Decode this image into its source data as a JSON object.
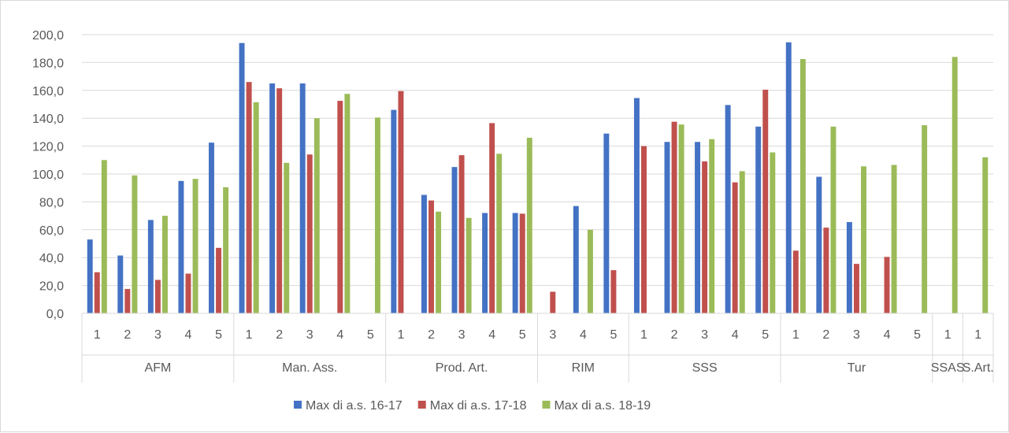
{
  "chart_data": {
    "type": "bar",
    "title": "",
    "xlabel": "",
    "ylabel": "",
    "ylim": [
      0,
      200
    ],
    "yticks": [
      "0,0",
      "20,0",
      "40,0",
      "60,0",
      "80,0",
      "100,0",
      "120,0",
      "140,0",
      "160,0",
      "180,0",
      "200,0"
    ],
    "grid": true,
    "legend_position": "bottom",
    "groups": [
      {
        "name": "AFM",
        "categories": [
          "1",
          "2",
          "3",
          "4",
          "5"
        ]
      },
      {
        "name": "Man. Ass.",
        "categories": [
          "1",
          "2",
          "3",
          "4",
          "5"
        ]
      },
      {
        "name": "Prod. Art.",
        "categories": [
          "1",
          "2",
          "3",
          "4",
          "5"
        ]
      },
      {
        "name": "RIM",
        "categories": [
          "3",
          "4",
          "5"
        ]
      },
      {
        "name": "SSS",
        "categories": [
          "1",
          "2",
          "3",
          "4",
          "5"
        ]
      },
      {
        "name": "Tur",
        "categories": [
          "1",
          "2",
          "3",
          "4",
          "5"
        ]
      },
      {
        "name": "SSAS",
        "categories": [
          "1"
        ]
      },
      {
        "name": "S.Art.",
        "categories": [
          "1"
        ]
      }
    ],
    "series": [
      {
        "name": "Max di a.s. 16-17",
        "color": "#4472C4",
        "values": [
          53,
          41.5,
          67,
          95,
          122.5,
          194,
          165,
          165,
          null,
          null,
          146,
          85,
          105,
          72,
          72,
          null,
          77,
          129,
          154.5,
          123,
          123,
          149.5,
          134,
          194.5,
          98,
          65.5,
          null,
          null,
          null,
          null
        ]
      },
      {
        "name": "Max di a.s. 17-18",
        "color": "#C0504D",
        "values": [
          29.5,
          17.5,
          24,
          28.5,
          47,
          166,
          161.5,
          114,
          152.5,
          null,
          159.5,
          81,
          113.5,
          136.5,
          71.5,
          15.5,
          null,
          31,
          120,
          137.5,
          109,
          94,
          160.5,
          45,
          61.5,
          35.5,
          40.5,
          null,
          null,
          null
        ]
      },
      {
        "name": "Max di a.s. 18-19",
        "color": "#9BBB59",
        "values": [
          110,
          99,
          70,
          96.5,
          90.5,
          151.5,
          108,
          140,
          157.5,
          140.5,
          null,
          73,
          68.5,
          114.5,
          126,
          null,
          60,
          null,
          null,
          135.5,
          125,
          102,
          115.5,
          182.5,
          134,
          105.5,
          106.5,
          135,
          184,
          112
        ]
      }
    ]
  }
}
